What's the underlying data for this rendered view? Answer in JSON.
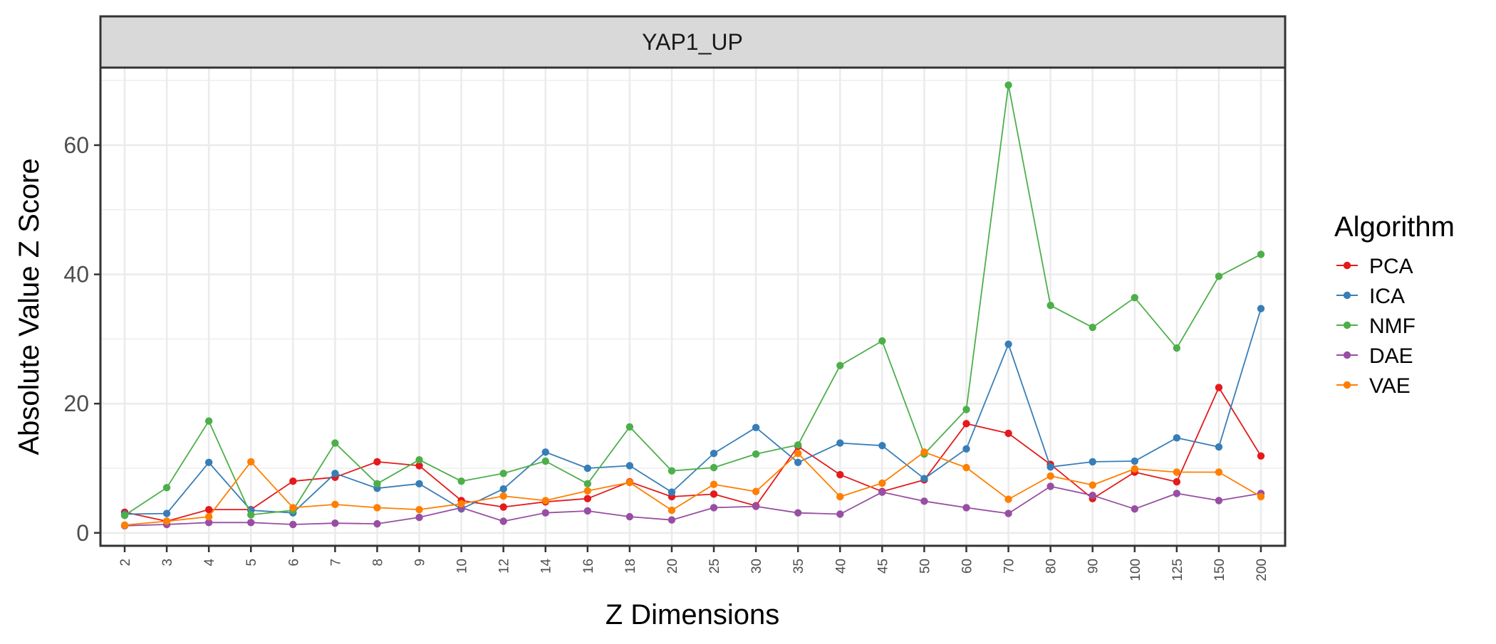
{
  "chart_data": {
    "type": "line",
    "panel_title": "YAP1_UP",
    "xlabel": "Z Dimensions",
    "ylabel": "Absolute Value Z Score",
    "ylim": [
      -2,
      72
    ],
    "yticks": [
      0,
      20,
      40,
      60
    ],
    "grid": true,
    "legend_title": "Algorithm",
    "legend_position": "right",
    "categories": [
      "2",
      "3",
      "4",
      "5",
      "6",
      "7",
      "8",
      "9",
      "10",
      "12",
      "14",
      "16",
      "18",
      "20",
      "25",
      "30",
      "35",
      "40",
      "45",
      "50",
      "60",
      "70",
      "80",
      "90",
      "100",
      "125",
      "150",
      "200"
    ],
    "series": [
      {
        "name": "PCA",
        "color": "#e41a1c",
        "values": [
          3.2,
          1.8,
          3.6,
          3.6,
          8.0,
          8.6,
          11.0,
          10.4,
          5.0,
          4.0,
          4.8,
          5.3,
          7.9,
          5.6,
          6.0,
          4.2,
          13.4,
          9.0,
          6.4,
          8.2,
          16.9,
          15.4,
          10.6,
          5.3,
          9.4,
          7.9,
          22.5,
          11.9
        ]
      },
      {
        "name": "ICA",
        "color": "#377eb8",
        "values": [
          2.9,
          3.0,
          10.9,
          3.5,
          3.1,
          9.2,
          6.9,
          7.6,
          3.7,
          6.8,
          12.5,
          10.0,
          10.4,
          6.3,
          12.3,
          16.3,
          10.9,
          13.9,
          13.5,
          8.4,
          13.0,
          29.2,
          10.2,
          11.0,
          11.1,
          14.7,
          13.3,
          34.7
        ]
      },
      {
        "name": "NMF",
        "color": "#4daf4a",
        "values": [
          2.7,
          7.0,
          17.3,
          2.8,
          3.5,
          13.9,
          7.6,
          11.3,
          8.0,
          9.2,
          11.1,
          7.6,
          16.4,
          9.6,
          10.1,
          12.2,
          13.6,
          25.9,
          29.7,
          12.2,
          19.1,
          69.3,
          35.2,
          31.8,
          36.4,
          28.6,
          39.7,
          43.1
        ]
      },
      {
        "name": "DAE",
        "color": "#984ea3",
        "values": [
          1.1,
          1.3,
          1.6,
          1.6,
          1.3,
          1.5,
          1.4,
          2.4,
          3.9,
          1.8,
          3.1,
          3.4,
          2.5,
          2.0,
          3.9,
          4.1,
          3.1,
          2.9,
          6.3,
          4.9,
          3.9,
          3.0,
          7.2,
          5.8,
          3.7,
          6.1,
          5.0,
          6.1
        ]
      },
      {
        "name": "VAE",
        "color": "#ff7f00",
        "values": [
          1.2,
          1.8,
          2.5,
          11.0,
          3.9,
          4.4,
          3.9,
          3.6,
          4.5,
          5.7,
          5.0,
          6.5,
          7.8,
          3.5,
          7.5,
          6.4,
          12.3,
          5.6,
          7.7,
          12.5,
          10.1,
          5.2,
          8.8,
          7.4,
          9.9,
          9.4,
          9.4,
          5.6
        ]
      }
    ]
  }
}
